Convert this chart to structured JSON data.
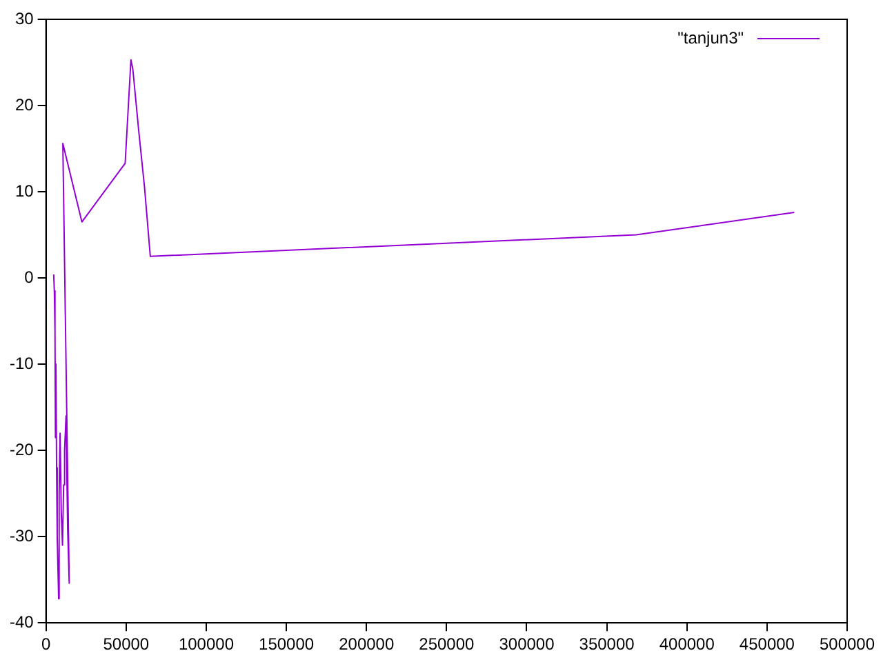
{
  "chart_data": {
    "type": "line",
    "xlim": [
      0,
      500000
    ],
    "ylim": [
      -40,
      30
    ],
    "xticks": [
      0,
      50000,
      100000,
      150000,
      200000,
      250000,
      300000,
      350000,
      400000,
      450000,
      500000
    ],
    "yticks": [
      -40,
      -30,
      -20,
      -10,
      0,
      10,
      20,
      30
    ],
    "grid": false,
    "legend": "top right",
    "marker": "none",
    "line_style": "solid",
    "series": [
      {
        "name": "\"tanjun3\"",
        "color": "#9400d3",
        "x": [
          4800,
          5200,
          5600,
          5900,
          6200,
          6600,
          7000,
          7900,
          8200,
          8800,
          9500,
          10300,
          11000,
          11600,
          12500,
          13500,
          14500,
          10500,
          22400,
          49400,
          53000,
          54200,
          57800,
          61500,
          65100,
          76600,
          368400,
          467000
        ],
        "values": [
          0.4,
          -1.5,
          -6,
          -18.5,
          -10,
          -22,
          -30,
          -37.2,
          -25,
          -18,
          -27,
          -31,
          -24,
          -20,
          -16,
          -29,
          -35.4,
          15.6,
          6.5,
          13.3,
          25.3,
          24.2,
          17.2,
          10.5,
          2.5,
          2.6,
          5.0,
          7.6
        ]
      }
    ]
  }
}
